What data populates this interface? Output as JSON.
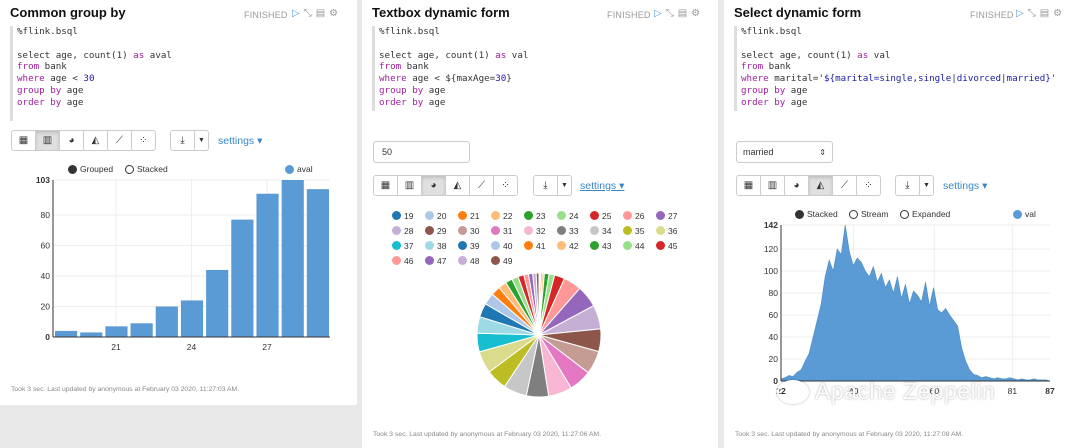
{
  "paragraphs": [
    {
      "title": "Common group by",
      "status": "FINISHED",
      "code": [
        [
          {
            "t": "%flink.bsql"
          }
        ],
        [],
        [
          {
            "t": "select age, count(1) "
          },
          {
            "t": "as",
            "c": "kw"
          },
          {
            "t": " aval"
          }
        ],
        [
          {
            "t": "from",
            "c": "kw"
          },
          {
            "t": " bank"
          }
        ],
        [
          {
            "t": "where",
            "c": "kw"
          },
          {
            "t": " age < "
          },
          {
            "t": "30",
            "c": "num"
          }
        ],
        [
          {
            "t": "group by",
            "c": "kw"
          },
          {
            "t": " age"
          }
        ],
        [
          {
            "t": "order by",
            "c": "kw"
          },
          {
            "t": " age"
          }
        ]
      ],
      "settings_label": "settings",
      "legend": {
        "grouped": "Grouped",
        "stacked": "Stacked",
        "series": "aval"
      },
      "footer": "Took 3 sec. Last updated by anonymous at February 03 2020, 11:27:03 AM."
    },
    {
      "title": "Textbox dynamic form",
      "status": "FINISHED",
      "code": [
        [
          {
            "t": "%flink.bsql"
          }
        ],
        [],
        [
          {
            "t": "select age, count(1) "
          },
          {
            "t": "as",
            "c": "kw"
          },
          {
            "t": " val"
          }
        ],
        [
          {
            "t": "from",
            "c": "kw"
          },
          {
            "t": " bank"
          }
        ],
        [
          {
            "t": "where",
            "c": "kw"
          },
          {
            "t": " age < ${maxAge="
          },
          {
            "t": "30",
            "c": "num"
          },
          {
            "t": "}"
          }
        ],
        [
          {
            "t": "group by",
            "c": "kw"
          },
          {
            "t": " age"
          }
        ],
        [
          {
            "t": "order by",
            "c": "kw"
          },
          {
            "t": " age"
          }
        ]
      ],
      "input_value": "50",
      "settings_label": "settings",
      "footer": "Took 3 sec. Last updated by anonymous at February 03 2020, 11:27:06 AM."
    },
    {
      "title": "Select dynamic form",
      "status": "FINISHED",
      "code": [
        [
          {
            "t": "%flink.bsql"
          }
        ],
        [],
        [
          {
            "t": "select age, count(1) "
          },
          {
            "t": "as",
            "c": "kw"
          },
          {
            "t": " val"
          }
        ],
        [
          {
            "t": "from",
            "c": "kw"
          },
          {
            "t": " bank"
          }
        ],
        [
          {
            "t": "where",
            "c": "kw"
          },
          {
            "t": " marital="
          },
          {
            "t": "'${marital=single,single|divorced|married}'",
            "c": "str"
          }
        ],
        [
          {
            "t": "group by",
            "c": "kw"
          },
          {
            "t": " age"
          }
        ],
        [
          {
            "t": "order by",
            "c": "kw"
          },
          {
            "t": " age"
          }
        ]
      ],
      "select_value": "married",
      "settings_label": "settings",
      "legend": {
        "stacked": "Stacked",
        "stream": "Stream",
        "expanded": "Expanded",
        "series": "val"
      },
      "footer": "Took 3 sec. Last updated by anonymous at February 03 2020, 11:27:08 AM."
    }
  ],
  "watermark": "Apache Zeppelin",
  "colors": {
    "accent": "#3a87c8",
    "bar": "#5b9bd5",
    "area": "#5b9bd5"
  },
  "chart_data": [
    {
      "type": "bar",
      "categories": [
        19,
        20,
        21,
        22,
        23,
        24,
        25,
        26,
        27,
        28,
        29
      ],
      "series": [
        {
          "name": "aval",
          "values": [
            4,
            3,
            7,
            9,
            20,
            24,
            44,
            77,
            94,
            103,
            97
          ]
        }
      ],
      "x_tick_labels": [
        21,
        24,
        27
      ],
      "y_tick_labels": [
        0,
        20,
        40,
        60,
        80,
        103
      ],
      "ylim": [
        0,
        103
      ]
    },
    {
      "type": "pie",
      "labels": [
        19,
        20,
        21,
        22,
        23,
        24,
        25,
        26,
        27,
        28,
        29,
        30,
        31,
        32,
        33,
        34,
        35,
        36,
        37,
        38,
        39,
        40,
        41,
        42,
        43,
        44,
        45,
        46,
        47,
        48,
        49
      ],
      "colors": [
        "#1f77b4",
        "#aec7e8",
        "#ff7f0e",
        "#ffbb78",
        "#2ca02c",
        "#98df8a",
        "#d62728",
        "#ff9896",
        "#9467bd",
        "#c5b0d5",
        "#8c564b",
        "#c49c94",
        "#e377c2",
        "#f7b6d2",
        "#7f7f7f",
        "#c7c7c7",
        "#bcbd22",
        "#dbdb8d",
        "#17becf",
        "#9edae5",
        "#1f77b4",
        "#aec7e8",
        "#ff7f0e",
        "#ffbb78",
        "#2ca02c",
        "#98df8a",
        "#d62728",
        "#ff9896",
        "#9467bd",
        "#c5b0d5",
        "#8c564b"
      ],
      "values": [
        4,
        3,
        7,
        9,
        20,
        24,
        44,
        77,
        94,
        103,
        97,
        100,
        97,
        102,
        95,
        100,
        90,
        95,
        80,
        70,
        60,
        50,
        40,
        35,
        30,
        28,
        25,
        20,
        18,
        15,
        12
      ]
    },
    {
      "type": "area",
      "series": [
        {
          "name": "val",
          "values": [
            2,
            3,
            5,
            4,
            8,
            10,
            18,
            25,
            40,
            55,
            70,
            95,
            110,
            100,
            120,
            115,
            142,
            118,
            105,
            112,
            108,
            100,
            95,
            104,
            90,
            98,
            85,
            92,
            80,
            95,
            75,
            88,
            70,
            82,
            78,
            72,
            90,
            68,
            85,
            65,
            62,
            66,
            60,
            55,
            50,
            30,
            18,
            10,
            6,
            5,
            3,
            4,
            3,
            2,
            3,
            2,
            2,
            3,
            2,
            1,
            2,
            1,
            1,
            2,
            1,
            1,
            1,
            0
          ]
        }
      ],
      "x_tick_labels": [
        "22",
        "40",
        "60",
        "81",
        "87"
      ],
      "y_tick_labels": [
        0,
        20,
        40,
        60,
        80,
        100,
        120,
        142
      ],
      "ylim": [
        0,
        142
      ]
    }
  ]
}
